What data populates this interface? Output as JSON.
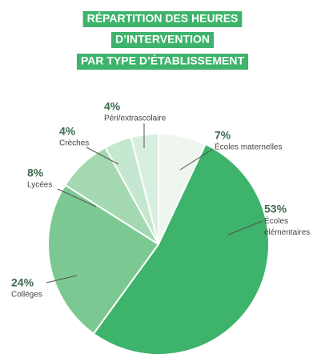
{
  "chart_data": {
    "type": "pie",
    "title": [
      "RÉPARTITION DES HEURES",
      "D’INTERVENTION",
      "PAR TYPE D’ÉTABLISSEMENT"
    ],
    "categories": [
      "Écoles maternelles",
      "Écoles élémentaires",
      "Collèges",
      "Lycées",
      "Crèches",
      "Péri/extrascolaire"
    ],
    "values": [
      7,
      53,
      24,
      8,
      4,
      4
    ],
    "value_labels": [
      "7%",
      "53%",
      "24%",
      "8%",
      "4%",
      "4%"
    ],
    "colors": [
      "#eef6ef",
      "#3db36b",
      "#7cc893",
      "#a3d8b1",
      "#c6e7cf",
      "#d8efdf"
    ],
    "title_color": "#3db36b"
  }
}
